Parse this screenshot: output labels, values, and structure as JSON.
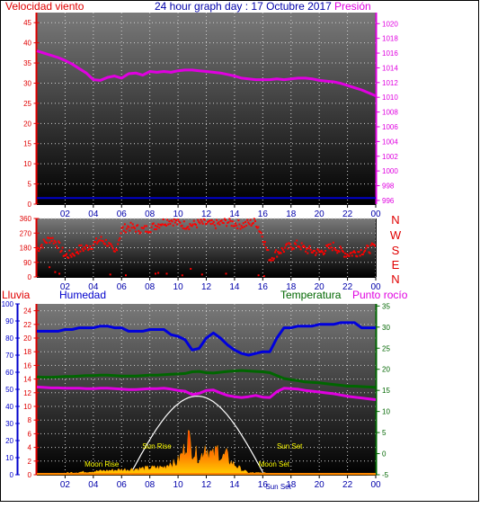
{
  "header": {
    "wind_label": "Velocidad viento",
    "graph_title": "24 hour graph day : 17 Octubre 2017",
    "pressure_label": "Presión"
  },
  "lower_header": {
    "rain_label": "Lluvia",
    "humidity_label": "Humedad",
    "temperature_label": "Temperatura",
    "dewpoint_label": "Punto rocío"
  },
  "compass": [
    "N",
    "W",
    "S",
    "E",
    "N"
  ],
  "sun_moon": {
    "sun_rise": "Sun Rise",
    "sun_set": "Sun Set",
    "moon_rise": "Moon Rise",
    "moon_set": "Moon Set",
    "sun_set_2": "Sun Set"
  },
  "colors": {
    "wind": "#0000cc",
    "pressure": "#e000e0",
    "direction": "#ff0000",
    "humidity": "#0000dd",
    "temperature": "#006600",
    "dewpoint": "#e000e0",
    "rain": "#e00000",
    "solar": "#ff8800",
    "sun_arc": "#ffffff"
  },
  "chart_data": [
    {
      "type": "line",
      "name": "wind-pressure",
      "x_ticks": [
        "02",
        "04",
        "06",
        "08",
        "10",
        "12",
        "14",
        "16",
        "18",
        "20",
        "22",
        "00"
      ],
      "y_left_ticks": [
        "0",
        "5",
        "10",
        "15",
        "20",
        "25",
        "30",
        "35",
        "40",
        "45"
      ],
      "y_left_lim": [
        0,
        47.5
      ],
      "y_right_ticks": [
        "996",
        "998",
        "1000",
        "1002",
        "1004",
        "1006",
        "1008",
        "1010",
        "1012",
        "1014",
        "1016",
        "1018",
        "1020"
      ],
      "y_right_lim": [
        995.5,
        1021.5
      ],
      "grid": true,
      "series": [
        {
          "axis": "left",
          "x": [
            0,
            24
          ],
          "y": [
            1.5,
            1.5
          ]
        },
        {
          "axis": "right",
          "x": [
            0,
            0.5,
            1,
            1.5,
            2,
            2.5,
            3,
            3.5,
            4,
            4.5,
            5,
            5.5,
            6,
            6.5,
            7,
            7.5,
            8,
            8.5,
            9,
            9.5,
            10,
            10.5,
            11,
            11.5,
            12,
            12.5,
            13,
            13.5,
            14,
            14.5,
            15,
            15.5,
            16,
            16.5,
            17,
            17.5,
            18,
            18.5,
            19,
            19.5,
            20,
            20.5,
            21,
            21.5,
            22,
            22.5,
            23,
            23.5,
            24
          ],
          "y": [
            1016.3,
            1016.0,
            1015.7,
            1015.4,
            1015.0,
            1014.5,
            1013.9,
            1013.3,
            1012.4,
            1012.3,
            1012.7,
            1012.9,
            1012.6,
            1013.2,
            1013.3,
            1013.0,
            1013.5,
            1013.4,
            1013.5,
            1013.4,
            1013.6,
            1013.7,
            1013.7,
            1013.6,
            1013.5,
            1013.4,
            1013.3,
            1013.1,
            1012.9,
            1012.6,
            1012.5,
            1012.4,
            1012.4,
            1012.4,
            1012.5,
            1012.4,
            1012.5,
            1012.6,
            1012.6,
            1012.5,
            1012.3,
            1012.2,
            1012.1,
            1011.9,
            1011.6,
            1011.3,
            1011.0,
            1010.6,
            1010.2
          ]
        }
      ]
    },
    {
      "type": "scatter",
      "name": "wind-direction",
      "x_ticks": [
        "02",
        "04",
        "06",
        "08",
        "10",
        "12",
        "14",
        "16",
        "18",
        "20",
        "22",
        "00"
      ],
      "y_ticks": [
        "0",
        "90",
        "180",
        "270",
        "360"
      ],
      "y_lim": [
        0,
        360
      ],
      "grid": true,
      "series": [
        {
          "x": [
            0,
            0.5,
            1,
            1.5,
            2,
            2.5,
            3,
            3.5,
            4,
            4.5,
            5,
            5.5,
            6,
            6.5,
            7,
            7.5,
            8,
            8.5,
            9,
            9.5,
            10,
            10.5,
            11,
            11.5,
            12,
            12.5,
            13,
            13.5,
            14,
            14.5,
            15,
            15.5,
            16,
            16.5,
            17,
            17.5,
            18,
            18.5,
            19,
            19.5,
            20,
            20.5,
            21,
            21.5,
            22,
            22.5,
            23,
            23.5,
            24
          ],
          "y": [
            170,
            210,
            240,
            200,
            130,
            140,
            170,
            180,
            200,
            230,
            210,
            140,
            290,
            310,
            300,
            290,
            300,
            320,
            340,
            350,
            330,
            320,
            320,
            330,
            330,
            320,
            330,
            340,
            330,
            320,
            330,
            340,
            250,
            110,
            150,
            170,
            190,
            200,
            170,
            160,
            150,
            170,
            190,
            160,
            140,
            150,
            160,
            170,
            190
          ]
        },
        {
          "x": [
            0.9,
            1.3,
            1.6,
            5.2,
            6.3,
            8.4,
            8.6,
            9.2,
            10.3,
            10.9,
            11.7,
            13.4,
            15.7,
            16.1
          ],
          "y": [
            60,
            30,
            20,
            15,
            10,
            20,
            25,
            20,
            10,
            50,
            15,
            20,
            10,
            5
          ]
        }
      ]
    },
    {
      "type": "line",
      "name": "humidity-temperature",
      "x_ticks": [
        "02",
        "04",
        "06",
        "08",
        "10",
        "12",
        "14",
        "16",
        "18",
        "20",
        "22",
        "00"
      ],
      "y_outer_ticks": [
        "0",
        "10",
        "20",
        "30",
        "40",
        "50",
        "60",
        "70",
        "80",
        "90",
        "100"
      ],
      "y_outer_lim": [
        0,
        100
      ],
      "y_inner_ticks": [
        "0",
        "2",
        "4",
        "6",
        "8",
        "10",
        "12",
        "14",
        "16",
        "18",
        "20",
        "22",
        "24"
      ],
      "y_inner_lim": [
        0,
        25
      ],
      "y_right_ticks": [
        "-5",
        "0",
        "5",
        "10",
        "15",
        "20",
        "25",
        "30",
        "35"
      ],
      "y_right_lim": [
        -5,
        35.5
      ],
      "grid": true,
      "series": [
        {
          "axis": "outer",
          "x": [
            0,
            0.5,
            1,
            1.5,
            2,
            2.5,
            3,
            3.5,
            4,
            4.5,
            5,
            5.5,
            6,
            6.5,
            7,
            7.5,
            8,
            8.5,
            9,
            9.5,
            10,
            10.5,
            11,
            11.5,
            12,
            12.5,
            13,
            13.5,
            14,
            14.5,
            15,
            15.5,
            16,
            16.5,
            17,
            17.5,
            18,
            18.5,
            19,
            19.5,
            20,
            20.5,
            21,
            21.5,
            22,
            22.5,
            23,
            23.5,
            24
          ],
          "y": [
            84,
            84,
            84,
            84,
            85,
            85,
            86,
            86,
            86,
            87,
            87,
            86,
            86,
            84,
            84,
            84,
            85,
            85,
            85,
            82,
            81,
            79,
            73,
            74,
            80,
            83,
            80,
            76,
            73,
            71,
            70,
            71,
            72,
            72,
            80,
            86,
            86,
            87,
            87,
            87,
            88,
            88,
            88,
            89,
            89,
            89,
            86,
            86,
            86
          ]
        },
        {
          "axis": "right",
          "x": [
            0,
            0.5,
            1,
            1.5,
            2,
            2.5,
            3,
            3.5,
            4,
            4.5,
            5,
            5.5,
            6,
            6.5,
            7,
            7.5,
            8,
            8.5,
            9,
            9.5,
            10,
            10.5,
            11,
            11.5,
            12,
            12.5,
            13,
            13.5,
            14,
            14.5,
            15,
            15.5,
            16,
            16.5,
            17,
            17.5,
            18,
            18.5,
            19,
            19.5,
            20,
            20.5,
            21,
            21.5,
            22,
            22.5,
            23,
            23.5,
            24
          ],
          "y": [
            18.2,
            18.1,
            18.1,
            18.2,
            18.3,
            18.3,
            18.4,
            18.5,
            18.5,
            18.6,
            18.6,
            18.5,
            18.4,
            18.4,
            18.4,
            18.5,
            18.6,
            18.6,
            18.7,
            18.8,
            18.9,
            19.0,
            19.4,
            19.5,
            19.2,
            19.1,
            19.3,
            19.5,
            19.6,
            19.7,
            19.6,
            19.5,
            19.4,
            19.2,
            18.5,
            17.8,
            17.5,
            17.3,
            17.0,
            16.9,
            16.8,
            16.6,
            16.4,
            16.2,
            16.0,
            16.0,
            15.9,
            15.8,
            15.7
          ]
        },
        {
          "axis": "right",
          "x": [
            0,
            0.5,
            1,
            1.5,
            2,
            2.5,
            3,
            3.5,
            4,
            4.5,
            5,
            5.5,
            6,
            6.5,
            7,
            7.5,
            8,
            8.5,
            9,
            9.5,
            10,
            10.5,
            11,
            11.5,
            12,
            12.5,
            13,
            13.5,
            14,
            14.5,
            15,
            15.5,
            16,
            16.5,
            17,
            17.5,
            18,
            18.5,
            19,
            19.5,
            20,
            20.5,
            21,
            21.5,
            22,
            22.5,
            23,
            23.5,
            24
          ],
          "y": [
            15.8,
            15.7,
            15.6,
            15.6,
            15.5,
            15.5,
            15.5,
            15.4,
            15.4,
            15.5,
            15.5,
            15.4,
            15.3,
            15.2,
            15.2,
            15.3,
            15.4,
            15.4,
            15.5,
            15.3,
            15.0,
            14.8,
            14.0,
            14.3,
            15.0,
            15.1,
            14.4,
            13.8,
            13.5,
            13.3,
            13.5,
            13.8,
            13.4,
            13.3,
            14.7,
            15.5,
            15.4,
            15.3,
            15.0,
            14.8,
            14.6,
            14.4,
            14.2,
            13.9,
            13.6,
            13.4,
            13.2,
            13.0,
            12.8
          ]
        }
      ],
      "solar": {
        "x": [
          0,
          9.0,
          9.5,
          9.8,
          10.1,
          10.4,
          10.7,
          11.0,
          11.3,
          11.6,
          11.9,
          12.2,
          12.5,
          12.8,
          13.1,
          13.4,
          13.7,
          14.0,
          14.5,
          15.0,
          24
        ],
        "y": [
          0,
          1.2,
          2.0,
          1.6,
          2.5,
          3.8,
          6.0,
          4.0,
          3.2,
          2.5,
          4.8,
          3.5,
          3.0,
          4.0,
          2.5,
          3.2,
          2.0,
          1.6,
          0.8,
          0.3,
          0
        ]
      },
      "sun_arc": {
        "rise_hour": 6.6,
        "set_hour": 16.1,
        "peak_hour": 11.2,
        "peak_inner": 11.5
      }
    }
  ]
}
